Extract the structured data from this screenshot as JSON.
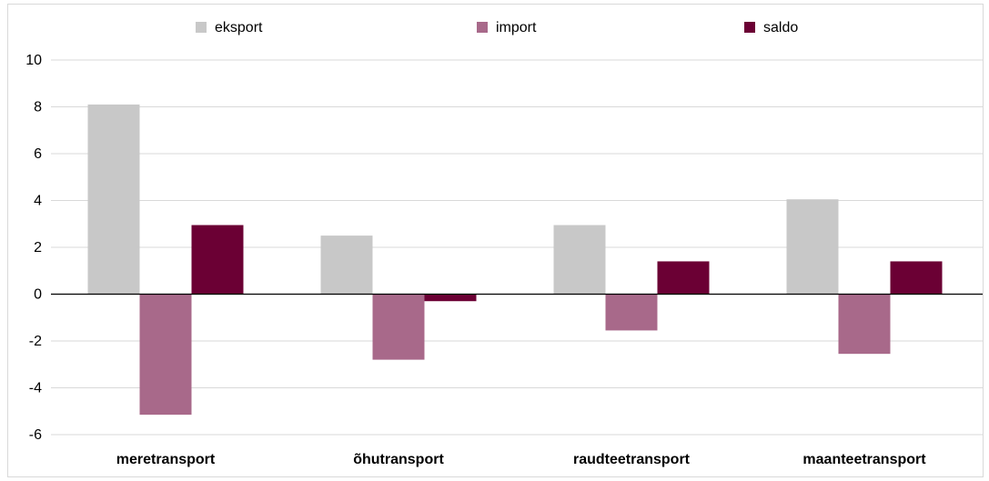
{
  "chart_data": {
    "type": "bar",
    "title": "",
    "xlabel": "",
    "ylabel": "",
    "categories": [
      "meretransport",
      "õhutransport",
      "raudteetransport",
      "maanteetransport"
    ],
    "series": [
      {
        "name": "eksport",
        "values": [
          8.1,
          2.5,
          2.95,
          4.05
        ],
        "color": "#c8c8c8"
      },
      {
        "name": "import",
        "values": [
          -5.15,
          -2.8,
          -1.55,
          -2.55
        ],
        "color": "#a8698a"
      },
      {
        "name": "saldo",
        "values": [
          2.95,
          -0.3,
          1.4,
          1.4
        ],
        "color": "#6b0034"
      }
    ],
    "ylim": [
      -6,
      10
    ],
    "yticks": [
      10,
      8,
      6,
      4,
      2,
      0,
      -2,
      -4,
      -6
    ],
    "ytick_labels": [
      "10",
      "8",
      "6",
      "4",
      "2",
      "0",
      "-2",
      "-4",
      "-6"
    ],
    "grid": true,
    "legend_position": "top"
  }
}
